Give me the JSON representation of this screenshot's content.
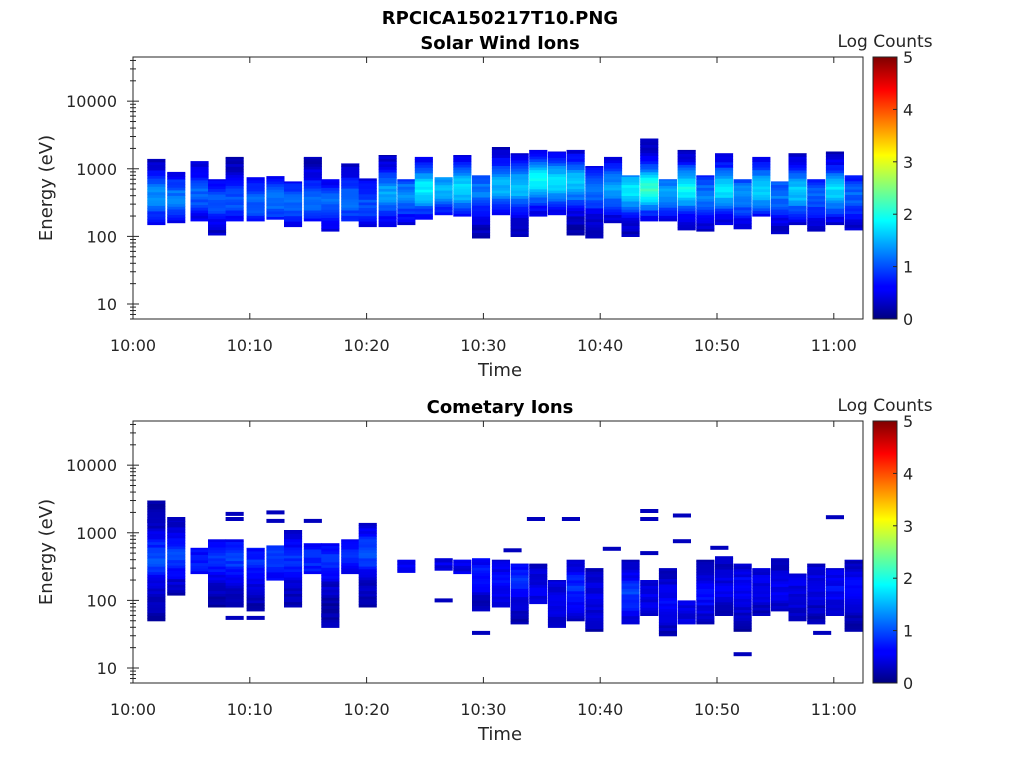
{
  "figure_title": "RPCICA150217T10.PNG",
  "chart_data": [
    {
      "type": "heatmap",
      "title": "Solar Wind Ions",
      "xlabel": "Time",
      "ylabel": "Energy (eV)",
      "x_tick_labels": [
        "10:00",
        "10:10",
        "10:20",
        "10:30",
        "10:40",
        "10:50",
        "11:00"
      ],
      "x_ticks_minutes": [
        0,
        10,
        20,
        30,
        40,
        50,
        60
      ],
      "xlim_minutes": [
        0,
        62.5
      ],
      "y_scale": "log",
      "ylim": [
        6,
        45000
      ],
      "y_ticks": [
        10,
        100,
        1000,
        10000
      ],
      "y_tick_labels": [
        "10",
        "100",
        "1000",
        "10000"
      ],
      "colorbar": {
        "label": "Log Counts",
        "range": [
          0,
          5
        ],
        "ticks": [
          "0",
          "1",
          "2",
          "3",
          "4",
          "5"
        ],
        "colormap": "jet"
      },
      "columns": [
        {
          "t": 2.0,
          "emin": 150,
          "emax": 1400,
          "peak": 1.1,
          "epeak": 380
        },
        {
          "t": 3.7,
          "emin": 160,
          "emax": 900,
          "peak": 1.0,
          "epeak": 360
        },
        {
          "t": 5.7,
          "emin": 170,
          "emax": 1300,
          "peak": 0.9,
          "epeak": 400
        },
        {
          "t": 7.2,
          "emin": 105,
          "emax": 700,
          "peak": 0.8,
          "epeak": 320
        },
        {
          "t": 8.7,
          "emin": 170,
          "emax": 1500,
          "peak": 0.8,
          "epeak": 330
        },
        {
          "t": 10.5,
          "emin": 170,
          "emax": 750,
          "peak": 0.9,
          "epeak": 320
        },
        {
          "t": 12.2,
          "emin": 180,
          "emax": 780,
          "peak": 1.0,
          "epeak": 330
        },
        {
          "t": 13.7,
          "emin": 140,
          "emax": 650,
          "peak": 0.9,
          "epeak": 320
        },
        {
          "t": 15.4,
          "emin": 170,
          "emax": 1500,
          "peak": 1.0,
          "epeak": 330
        },
        {
          "t": 16.9,
          "emin": 120,
          "emax": 700,
          "peak": 0.9,
          "epeak": 300
        },
        {
          "t": 18.6,
          "emin": 170,
          "emax": 1200,
          "peak": 1.0,
          "epeak": 340
        },
        {
          "t": 20.1,
          "emin": 140,
          "emax": 720,
          "peak": 0.8,
          "epeak": 300
        },
        {
          "t": 21.8,
          "emin": 140,
          "emax": 1600,
          "peak": 1.2,
          "epeak": 420
        },
        {
          "t": 23.4,
          "emin": 150,
          "emax": 700,
          "peak": 1.1,
          "epeak": 400
        },
        {
          "t": 24.9,
          "emin": 180,
          "emax": 1500,
          "peak": 1.6,
          "epeak": 480
        },
        {
          "t": 26.6,
          "emin": 210,
          "emax": 750,
          "peak": 1.3,
          "epeak": 500
        },
        {
          "t": 28.2,
          "emin": 200,
          "emax": 1600,
          "peak": 1.5,
          "epeak": 500
        },
        {
          "t": 29.8,
          "emin": 95,
          "emax": 800,
          "peak": 1.0,
          "epeak": 450
        },
        {
          "t": 31.5,
          "emin": 210,
          "emax": 2100,
          "peak": 1.3,
          "epeak": 550
        },
        {
          "t": 33.1,
          "emin": 100,
          "emax": 1700,
          "peak": 1.4,
          "epeak": 550
        },
        {
          "t": 34.7,
          "emin": 200,
          "emax": 1900,
          "peak": 1.7,
          "epeak": 650
        },
        {
          "t": 36.3,
          "emin": 210,
          "emax": 1800,
          "peak": 1.5,
          "epeak": 620
        },
        {
          "t": 37.9,
          "emin": 105,
          "emax": 1900,
          "peak": 1.4,
          "epeak": 600
        },
        {
          "t": 39.5,
          "emin": 95,
          "emax": 1100,
          "peak": 1.0,
          "epeak": 480
        },
        {
          "t": 41.1,
          "emin": 160,
          "emax": 1500,
          "peak": 1.2,
          "epeak": 500
        },
        {
          "t": 42.6,
          "emin": 100,
          "emax": 800,
          "peak": 1.6,
          "epeak": 480
        },
        {
          "t": 44.2,
          "emin": 170,
          "emax": 2800,
          "peak": 1.9,
          "epeak": 500
        },
        {
          "t": 45.8,
          "emin": 170,
          "emax": 700,
          "peak": 1.2,
          "epeak": 420
        },
        {
          "t": 47.4,
          "emin": 125,
          "emax": 1900,
          "peak": 1.7,
          "epeak": 480
        },
        {
          "t": 49.0,
          "emin": 120,
          "emax": 800,
          "peak": 1.0,
          "epeak": 400
        },
        {
          "t": 50.6,
          "emin": 150,
          "emax": 1700,
          "peak": 1.5,
          "epeak": 480
        },
        {
          "t": 52.2,
          "emin": 130,
          "emax": 700,
          "peak": 1.1,
          "epeak": 400
        },
        {
          "t": 53.8,
          "emin": 200,
          "emax": 1500,
          "peak": 1.5,
          "epeak": 480
        },
        {
          "t": 55.4,
          "emin": 110,
          "emax": 650,
          "peak": 1.0,
          "epeak": 400
        },
        {
          "t": 56.9,
          "emin": 150,
          "emax": 1700,
          "peak": 1.4,
          "epeak": 450
        },
        {
          "t": 58.5,
          "emin": 120,
          "emax": 700,
          "peak": 0.9,
          "epeak": 380
        },
        {
          "t": 60.1,
          "emin": 150,
          "emax": 1800,
          "peak": 1.5,
          "epeak": 460
        },
        {
          "t": 61.7,
          "emin": 125,
          "emax": 800,
          "peak": 0.9,
          "epeak": 380
        }
      ]
    },
    {
      "type": "heatmap",
      "title": "Cometary Ions",
      "xlabel": "Time",
      "ylabel": "Energy (eV)",
      "x_tick_labels": [
        "10:00",
        "10:10",
        "10:20",
        "10:30",
        "10:40",
        "10:50",
        "11:00"
      ],
      "x_ticks_minutes": [
        0,
        10,
        20,
        30,
        40,
        50,
        60
      ],
      "xlim_minutes": [
        0,
        62.5
      ],
      "y_scale": "log",
      "ylim": [
        6,
        45000
      ],
      "y_ticks": [
        10,
        100,
        1000,
        10000
      ],
      "y_tick_labels": [
        "10",
        "100",
        "1000",
        "10000"
      ],
      "colorbar": {
        "label": "Log Counts",
        "range": [
          0,
          5
        ],
        "ticks": [
          "0",
          "1",
          "2",
          "3",
          "4",
          "5"
        ],
        "colormap": "jet"
      },
      "columns": [
        {
          "t": 2.0,
          "emin": 50,
          "emax": 3000,
          "peak": 0.8,
          "epeak": 400
        },
        {
          "t": 3.7,
          "emin": 120,
          "emax": 1500,
          "peak": 0.7,
          "epeak": 450
        },
        {
          "t": 5.7,
          "emin": 250,
          "emax": 600,
          "peak": 0.5,
          "epeak": 400
        },
        {
          "t": 7.2,
          "emin": 80,
          "emax": 800,
          "peak": 0.6,
          "epeak": 400
        },
        {
          "t": 8.7,
          "emin": 80,
          "emax": 800,
          "peak": 0.7,
          "epeak": 400
        },
        {
          "t": 10.5,
          "emin": 70,
          "emax": 600,
          "peak": 0.6,
          "epeak": 380
        },
        {
          "t": 12.2,
          "emin": 200,
          "emax": 650,
          "peak": 0.7,
          "epeak": 400
        },
        {
          "t": 13.7,
          "emin": 80,
          "emax": 1100,
          "peak": 0.6,
          "epeak": 400
        },
        {
          "t": 15.4,
          "emin": 250,
          "emax": 700,
          "peak": 0.6,
          "epeak": 420
        },
        {
          "t": 16.9,
          "emin": 40,
          "emax": 700,
          "peak": 0.6,
          "epeak": 400
        },
        {
          "t": 18.6,
          "emin": 250,
          "emax": 800,
          "peak": 0.6,
          "epeak": 450
        },
        {
          "t": 20.1,
          "emin": 80,
          "emax": 1400,
          "peak": 0.8,
          "epeak": 500
        },
        {
          "t": 23.4,
          "emin": 260,
          "emax": 400,
          "peak": 0.3,
          "epeak": 320
        },
        {
          "t": 26.6,
          "emin": 280,
          "emax": 420,
          "peak": 0.3,
          "epeak": 340
        },
        {
          "t": 28.2,
          "emin": 250,
          "emax": 400,
          "peak": 0.3,
          "epeak": 320
        },
        {
          "t": 29.8,
          "emin": 70,
          "emax": 420,
          "peak": 0.5,
          "epeak": 250
        },
        {
          "t": 31.5,
          "emin": 80,
          "emax": 400,
          "peak": 0.4,
          "epeak": 200
        },
        {
          "t": 33.1,
          "emin": 45,
          "emax": 350,
          "peak": 0.6,
          "epeak": 200
        },
        {
          "t": 34.7,
          "emin": 90,
          "emax": 350,
          "peak": 0.3,
          "epeak": 150
        },
        {
          "t": 36.3,
          "emin": 40,
          "emax": 200,
          "peak": 0.3,
          "epeak": 100
        },
        {
          "t": 37.9,
          "emin": 50,
          "emax": 400,
          "peak": 0.6,
          "epeak": 150
        },
        {
          "t": 39.5,
          "emin": 35,
          "emax": 300,
          "peak": 0.3,
          "epeak": 100
        },
        {
          "t": 42.6,
          "emin": 45,
          "emax": 400,
          "peak": 0.7,
          "epeak": 120
        },
        {
          "t": 44.2,
          "emin": 60,
          "emax": 200,
          "peak": 0.3,
          "epeak": 100
        },
        {
          "t": 45.8,
          "emin": 30,
          "emax": 300,
          "peak": 0.4,
          "epeak": 100
        },
        {
          "t": 47.4,
          "emin": 45,
          "emax": 100,
          "peak": 0.3,
          "epeak": 80
        },
        {
          "t": 49.0,
          "emin": 45,
          "emax": 400,
          "peak": 0.4,
          "epeak": 120
        },
        {
          "t": 50.6,
          "emin": 60,
          "emax": 450,
          "peak": 0.3,
          "epeak": 150
        },
        {
          "t": 52.2,
          "emin": 35,
          "emax": 350,
          "peak": 0.4,
          "epeak": 150
        },
        {
          "t": 53.8,
          "emin": 60,
          "emax": 300,
          "peak": 0.3,
          "epeak": 150
        },
        {
          "t": 55.4,
          "emin": 70,
          "emax": 420,
          "peak": 0.3,
          "epeak": 150
        },
        {
          "t": 56.9,
          "emin": 50,
          "emax": 250,
          "peak": 0.3,
          "epeak": 150
        },
        {
          "t": 58.5,
          "emin": 45,
          "emax": 350,
          "peak": 0.3,
          "epeak": 150
        },
        {
          "t": 60.1,
          "emin": 60,
          "emax": 300,
          "peak": 0.4,
          "epeak": 150
        },
        {
          "t": 61.7,
          "emin": 35,
          "emax": 400,
          "peak": 0.4,
          "epeak": 150
        }
      ],
      "spots": [
        {
          "t": 2.0,
          "e": 1500
        },
        {
          "t": 3.7,
          "e": 1600
        },
        {
          "t": 8.7,
          "e": 1900
        },
        {
          "t": 8.7,
          "e": 1600
        },
        {
          "t": 12.2,
          "e": 2000
        },
        {
          "t": 12.2,
          "e": 1500
        },
        {
          "t": 15.4,
          "e": 1500
        },
        {
          "t": 16.9,
          "e": 60
        },
        {
          "t": 10.5,
          "e": 55
        },
        {
          "t": 8.7,
          "e": 55
        },
        {
          "t": 26.6,
          "e": 100
        },
        {
          "t": 29.8,
          "e": 33
        },
        {
          "t": 32.5,
          "e": 550
        },
        {
          "t": 34.5,
          "e": 1600
        },
        {
          "t": 37.5,
          "e": 1600
        },
        {
          "t": 41.0,
          "e": 580
        },
        {
          "t": 44.2,
          "e": 2100
        },
        {
          "t": 44.2,
          "e": 1600
        },
        {
          "t": 44.2,
          "e": 500
        },
        {
          "t": 47.0,
          "e": 1800
        },
        {
          "t": 47.0,
          "e": 750
        },
        {
          "t": 50.2,
          "e": 600
        },
        {
          "t": 52.2,
          "e": 16
        },
        {
          "t": 60.1,
          "e": 1700
        },
        {
          "t": 59.0,
          "e": 33
        }
      ]
    }
  ]
}
